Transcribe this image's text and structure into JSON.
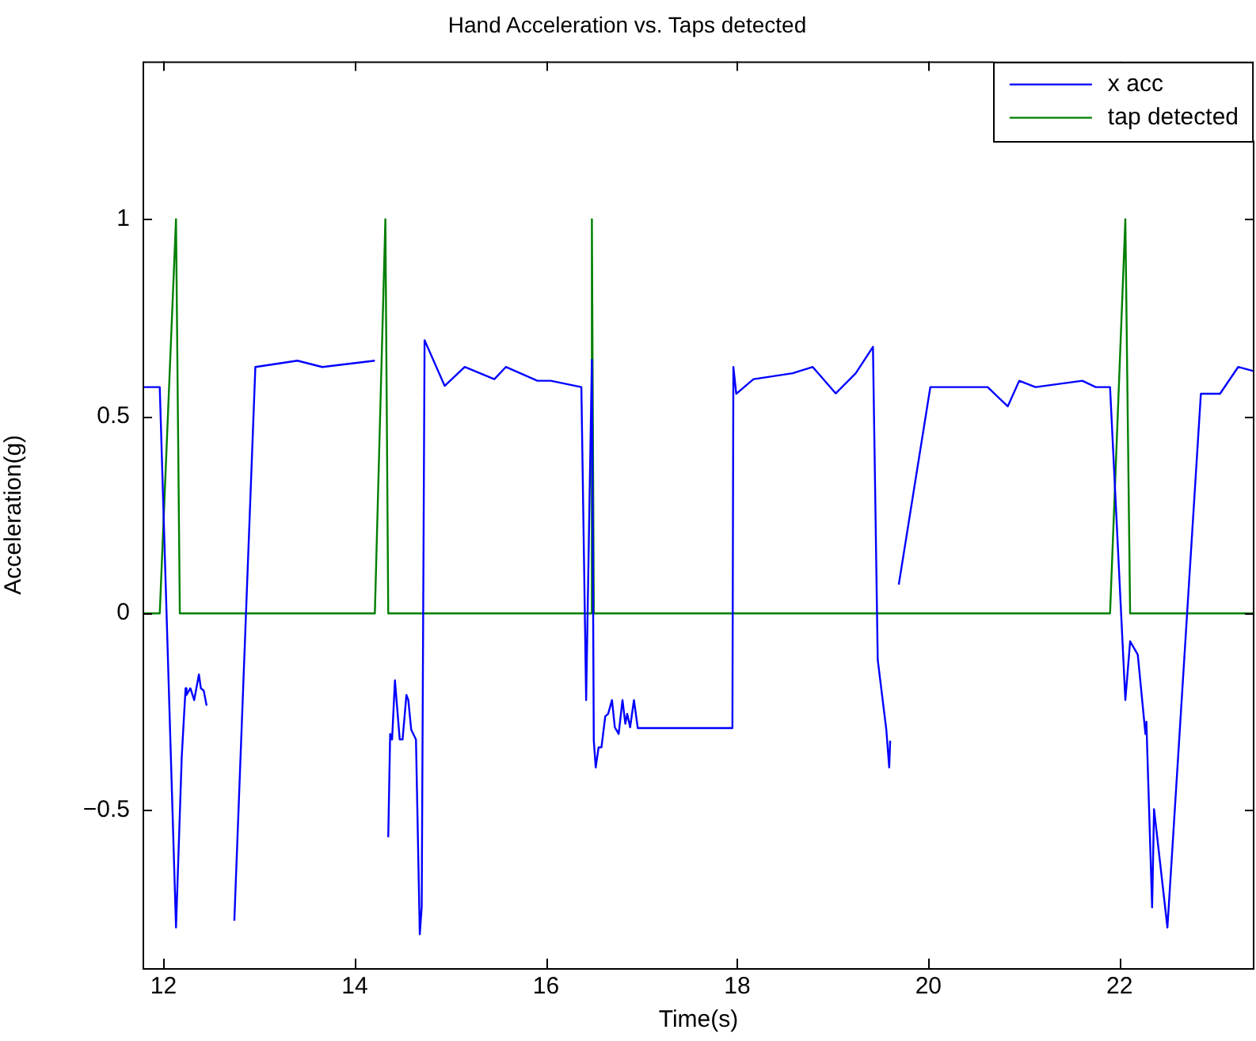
{
  "chart_data": {
    "type": "line",
    "title": "Hand Acceleration vs. Taps detected",
    "xlabel": "Time(s)",
    "ylabel": "Acceleration(g)",
    "xlim": [
      11.78,
      23.41
    ],
    "xticks": [
      12,
      14,
      16,
      18,
      20,
      22
    ],
    "ylim": [
      -0.9,
      1.4
    ],
    "yticks": [
      {
        "value": -0.5,
        "label": "−0.5"
      },
      0,
      0.5,
      1
    ],
    "grid": false,
    "legend": "top right",
    "marker": "none",
    "line_style": "solid",
    "series": [
      {
        "name": "x acc",
        "color": "#0000ff",
        "x": [
          11.78,
          11.96,
          12.13,
          12.19,
          12.23,
          12.24,
          12.28,
          12.32,
          12.37,
          12.39,
          12.42,
          12.45,
          12.52,
          12.61,
          12.74,
          12.96,
          13.4,
          13.66,
          14.21,
          14.32,
          14.35,
          14.37,
          14.39,
          14.42,
          14.47,
          14.5,
          14.54,
          14.56,
          14.59,
          14.64,
          14.68,
          14.7,
          14.73,
          14.94,
          15.15,
          15.46,
          15.58,
          15.91,
          16.05,
          16.37,
          16.42,
          16.43,
          16.48,
          16.5,
          16.52,
          16.55,
          16.58,
          16.62,
          16.65,
          16.69,
          16.72,
          16.76,
          16.8,
          16.83,
          16.85,
          16.88,
          16.92,
          16.96,
          17.95,
          17.96,
          17.99,
          18.17,
          18.58,
          18.79,
          19.03,
          19.24,
          19.42,
          19.47,
          19.56,
          19.59,
          19.6,
          19.66,
          19.69,
          20.02,
          20.62,
          20.83,
          20.95,
          21.12,
          21.61,
          21.75,
          21.9,
          22.06,
          22.11,
          22.19,
          22.27,
          22.28,
          22.34,
          22.36,
          22.5,
          22.85,
          23.05,
          23.24,
          23.41
        ],
        "values": [
          0.574,
          0.574,
          -0.797,
          -0.364,
          -0.19,
          -0.207,
          -0.19,
          -0.22,
          -0.155,
          -0.19,
          -0.196,
          -0.234,
          null,
          null,
          -0.78,
          0.625,
          0.641,
          0.625,
          0.641,
          null,
          -0.568,
          -0.306,
          -0.32,
          -0.17,
          -0.32,
          -0.32,
          -0.207,
          -0.22,
          -0.295,
          -0.32,
          -0.814,
          -0.745,
          0.693,
          0.577,
          0.625,
          0.594,
          0.625,
          0.59,
          0.59,
          0.574,
          -0.22,
          -0.22,
          0.643,
          -0.323,
          -0.391,
          -0.34,
          -0.34,
          -0.261,
          -0.255,
          -0.22,
          -0.289,
          -0.306,
          -0.22,
          -0.28,
          -0.255,
          -0.289,
          -0.22,
          -0.291,
          -0.291,
          0.625,
          0.557,
          0.594,
          0.609,
          0.625,
          0.558,
          0.609,
          0.676,
          -0.118,
          -0.296,
          -0.391,
          -0.323,
          null,
          0.073,
          0.574,
          0.574,
          0.525,
          0.59,
          0.574,
          0.59,
          0.574,
          0.574,
          -0.22,
          -0.071,
          -0.105,
          -0.306,
          -0.275,
          -0.746,
          -0.497,
          -0.797,
          0.557,
          0.557,
          0.625,
          0.614
        ]
      },
      {
        "name": "tap detected",
        "color": "#008000",
        "x": [
          11.78,
          11.96,
          12.13,
          12.17,
          14.21,
          14.32,
          14.35,
          16.47,
          16.48,
          16.5,
          21.9,
          22.06,
          22.11,
          23.41
        ],
        "values": [
          0,
          0,
          1,
          0,
          0,
          1,
          0,
          0,
          1,
          0,
          0,
          1,
          0,
          0
        ]
      }
    ]
  }
}
